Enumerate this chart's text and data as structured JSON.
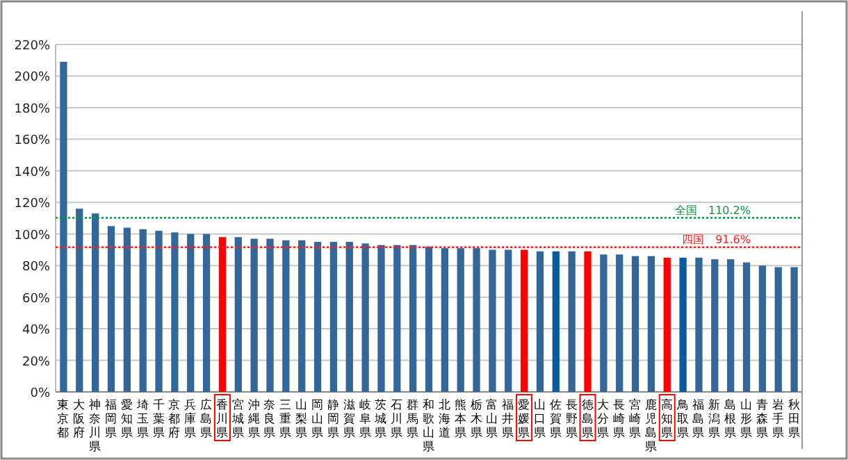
{
  "chart_data": {
    "type": "bar",
    "categories": [
      "東京都",
      "大阪府",
      "神奈川県",
      "福岡県",
      "愛知県",
      "埼玉県",
      "千葉県",
      "京都府",
      "兵庫県",
      "広島県",
      "香川県",
      "宮城県",
      "沖縄県",
      "奈良県",
      "三重県",
      "山梨県",
      "岡山県",
      "静岡県",
      "滋賀県",
      "岐阜県",
      "茨城県",
      "石川県",
      "群馬県",
      "和歌山県",
      "北海道",
      "熊本県",
      "栃木県",
      "富山県",
      "福井県",
      "愛媛県",
      "山口県",
      "佐賀県",
      "長野県",
      "徳島県",
      "大分県",
      "長崎県",
      "宮崎県",
      "鹿児島県",
      "高知県",
      "鳥取県",
      "福島県",
      "新潟県",
      "島根県",
      "山形県",
      "青森県",
      "岩手県",
      "秋田県"
    ],
    "values": [
      209,
      116,
      113,
      105,
      104,
      103,
      102,
      101,
      100,
      100,
      98,
      98,
      97,
      97,
      96,
      96,
      95,
      95,
      95,
      94,
      93,
      93,
      93,
      92,
      91,
      91,
      91,
      90,
      90,
      90,
      89,
      89,
      89,
      89,
      87,
      87,
      86,
      86,
      85,
      85,
      85,
      84,
      84,
      82,
      80,
      79,
      79
    ],
    "colors": [
      "#336699",
      "#336699",
      "#336699",
      "#336699",
      "#336699",
      "#336699",
      "#336699",
      "#336699",
      "#336699",
      "#336699",
      "#ff0000",
      "#336699",
      "#336699",
      "#336699",
      "#336699",
      "#336699",
      "#336699",
      "#336699",
      "#336699",
      "#336699",
      "#336699",
      "#336699",
      "#336699",
      "#336699",
      "#336699",
      "#336699",
      "#336699",
      "#336699",
      "#336699",
      "#ff0000",
      "#336699",
      "#0a5aa0",
      "#336699",
      "#ff0000",
      "#336699",
      "#336699",
      "#336699",
      "#336699",
      "#ff0000",
      "#0a5aa0",
      "#336699",
      "#336699",
      "#336699",
      "#336699",
      "#336699",
      "#336699",
      "#336699"
    ],
    "ylim": [
      0,
      220
    ],
    "yticks": [
      {
        "value": 0,
        "label": "0%"
      },
      {
        "value": 20,
        "label": "20%"
      },
      {
        "value": 40,
        "label": "40%"
      },
      {
        "value": 60,
        "label": "60%"
      },
      {
        "value": 80,
        "label": "80%"
      },
      {
        "value": 100,
        "label": "100%"
      },
      {
        "value": 120,
        "label": "120%"
      },
      {
        "value": 140,
        "label": "140%"
      },
      {
        "value": 160,
        "label": "160%"
      },
      {
        "value": 180,
        "label": "180%"
      },
      {
        "value": 200,
        "label": "200%"
      },
      {
        "value": 220,
        "label": "220%"
      }
    ],
    "grid": "y",
    "ref_lines": [
      {
        "axis": "y",
        "value": 110.2,
        "label": "全国　110.2%",
        "color": "#109040",
        "line_style": "dotted"
      },
      {
        "axis": "y",
        "value": 91.6,
        "label": "四国　91.6%",
        "color": "#ff2020",
        "line_style": "dotted"
      }
    ]
  }
}
